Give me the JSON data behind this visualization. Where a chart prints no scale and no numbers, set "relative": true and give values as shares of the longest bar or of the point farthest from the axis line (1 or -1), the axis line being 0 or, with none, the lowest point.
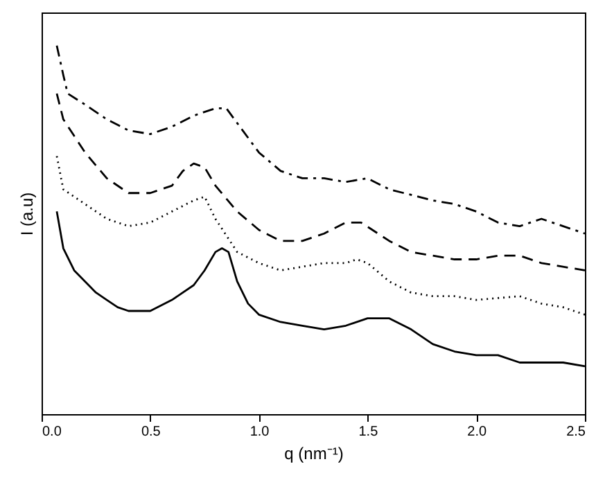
{
  "chart_data": {
    "type": "line",
    "relative": true,
    "xlabel": "q (nm⁻¹)",
    "ylabel": "I (a.u)",
    "xlim": [
      0,
      2.5
    ],
    "xticks": [
      {
        "value": 0,
        "label": "0.0"
      },
      {
        "value": 0.5,
        "label": "0.5"
      },
      {
        "value": 1,
        "label": "1.0"
      },
      {
        "value": 1.5,
        "label": "1.5"
      },
      {
        "value": 2,
        "label": "2.0"
      },
      {
        "value": 2.5,
        "label": "2.5"
      }
    ],
    "tick_labels": "x",
    "grid": false,
    "marker": "none",
    "series": [
      {
        "color": "#000000",
        "line_style": "dashdot",
        "x": [
          0.07,
          0.1,
          0.12,
          0.2,
          0.3,
          0.4,
          0.5,
          0.6,
          0.7,
          0.8,
          0.85,
          0.9,
          1.0,
          1.1,
          1.2,
          1.3,
          1.4,
          1.5,
          1.6,
          1.8,
          1.9,
          2.0,
          2.1,
          2.2,
          2.3,
          2.4,
          2.5
        ],
        "values": [
          1.0,
          0.92,
          0.87,
          0.84,
          0.8,
          0.77,
          0.76,
          0.78,
          0.81,
          0.83,
          0.83,
          0.79,
          0.71,
          0.66,
          0.64,
          0.64,
          0.63,
          0.64,
          0.61,
          0.58,
          0.57,
          0.55,
          0.52,
          0.51,
          0.53,
          0.51,
          0.49
        ]
      },
      {
        "color": "#000000",
        "line_style": "dashed",
        "x": [
          0.07,
          0.1,
          0.2,
          0.3,
          0.4,
          0.5,
          0.6,
          0.65,
          0.7,
          0.75,
          0.8,
          0.9,
          1.0,
          1.1,
          1.2,
          1.3,
          1.4,
          1.47,
          1.6,
          1.7,
          1.9,
          2.0,
          2.1,
          2.2,
          2.3,
          2.5
        ],
        "values": [
          0.87,
          0.8,
          0.71,
          0.64,
          0.6,
          0.6,
          0.62,
          0.66,
          0.68,
          0.67,
          0.62,
          0.55,
          0.5,
          0.47,
          0.47,
          0.49,
          0.52,
          0.52,
          0.47,
          0.44,
          0.42,
          0.42,
          0.43,
          0.43,
          0.41,
          0.39
        ]
      },
      {
        "color": "#000000",
        "line_style": "dotted",
        "x": [
          0.07,
          0.1,
          0.2,
          0.3,
          0.4,
          0.5,
          0.6,
          0.7,
          0.75,
          0.8,
          0.9,
          1.0,
          1.1,
          1.2,
          1.3,
          1.4,
          1.45,
          1.5,
          1.6,
          1.7,
          1.8,
          1.9,
          2.0,
          2.2,
          2.3,
          2.4,
          2.5
        ],
        "values": [
          0.7,
          0.61,
          0.57,
          0.53,
          0.51,
          0.52,
          0.55,
          0.58,
          0.59,
          0.53,
          0.44,
          0.41,
          0.39,
          0.4,
          0.41,
          0.41,
          0.42,
          0.41,
          0.36,
          0.33,
          0.32,
          0.32,
          0.31,
          0.32,
          0.3,
          0.29,
          0.27
        ]
      },
      {
        "color": "#000000",
        "line_style": "solid",
        "x": [
          0.07,
          0.1,
          0.15,
          0.2,
          0.25,
          0.3,
          0.35,
          0.4,
          0.45,
          0.5,
          0.6,
          0.7,
          0.75,
          0.8,
          0.83,
          0.86,
          0.9,
          0.95,
          1.0,
          1.1,
          1.2,
          1.3,
          1.4,
          1.5,
          1.6,
          1.7,
          1.8,
          1.9,
          2.0,
          2.1,
          2.2,
          2.3,
          2.4,
          2.5
        ],
        "values": [
          0.55,
          0.45,
          0.39,
          0.36,
          0.33,
          0.31,
          0.29,
          0.28,
          0.28,
          0.28,
          0.31,
          0.35,
          0.39,
          0.44,
          0.45,
          0.44,
          0.36,
          0.3,
          0.27,
          0.25,
          0.24,
          0.23,
          0.24,
          0.26,
          0.26,
          0.23,
          0.19,
          0.17,
          0.16,
          0.16,
          0.14,
          0.14,
          0.14,
          0.13
        ]
      }
    ]
  }
}
